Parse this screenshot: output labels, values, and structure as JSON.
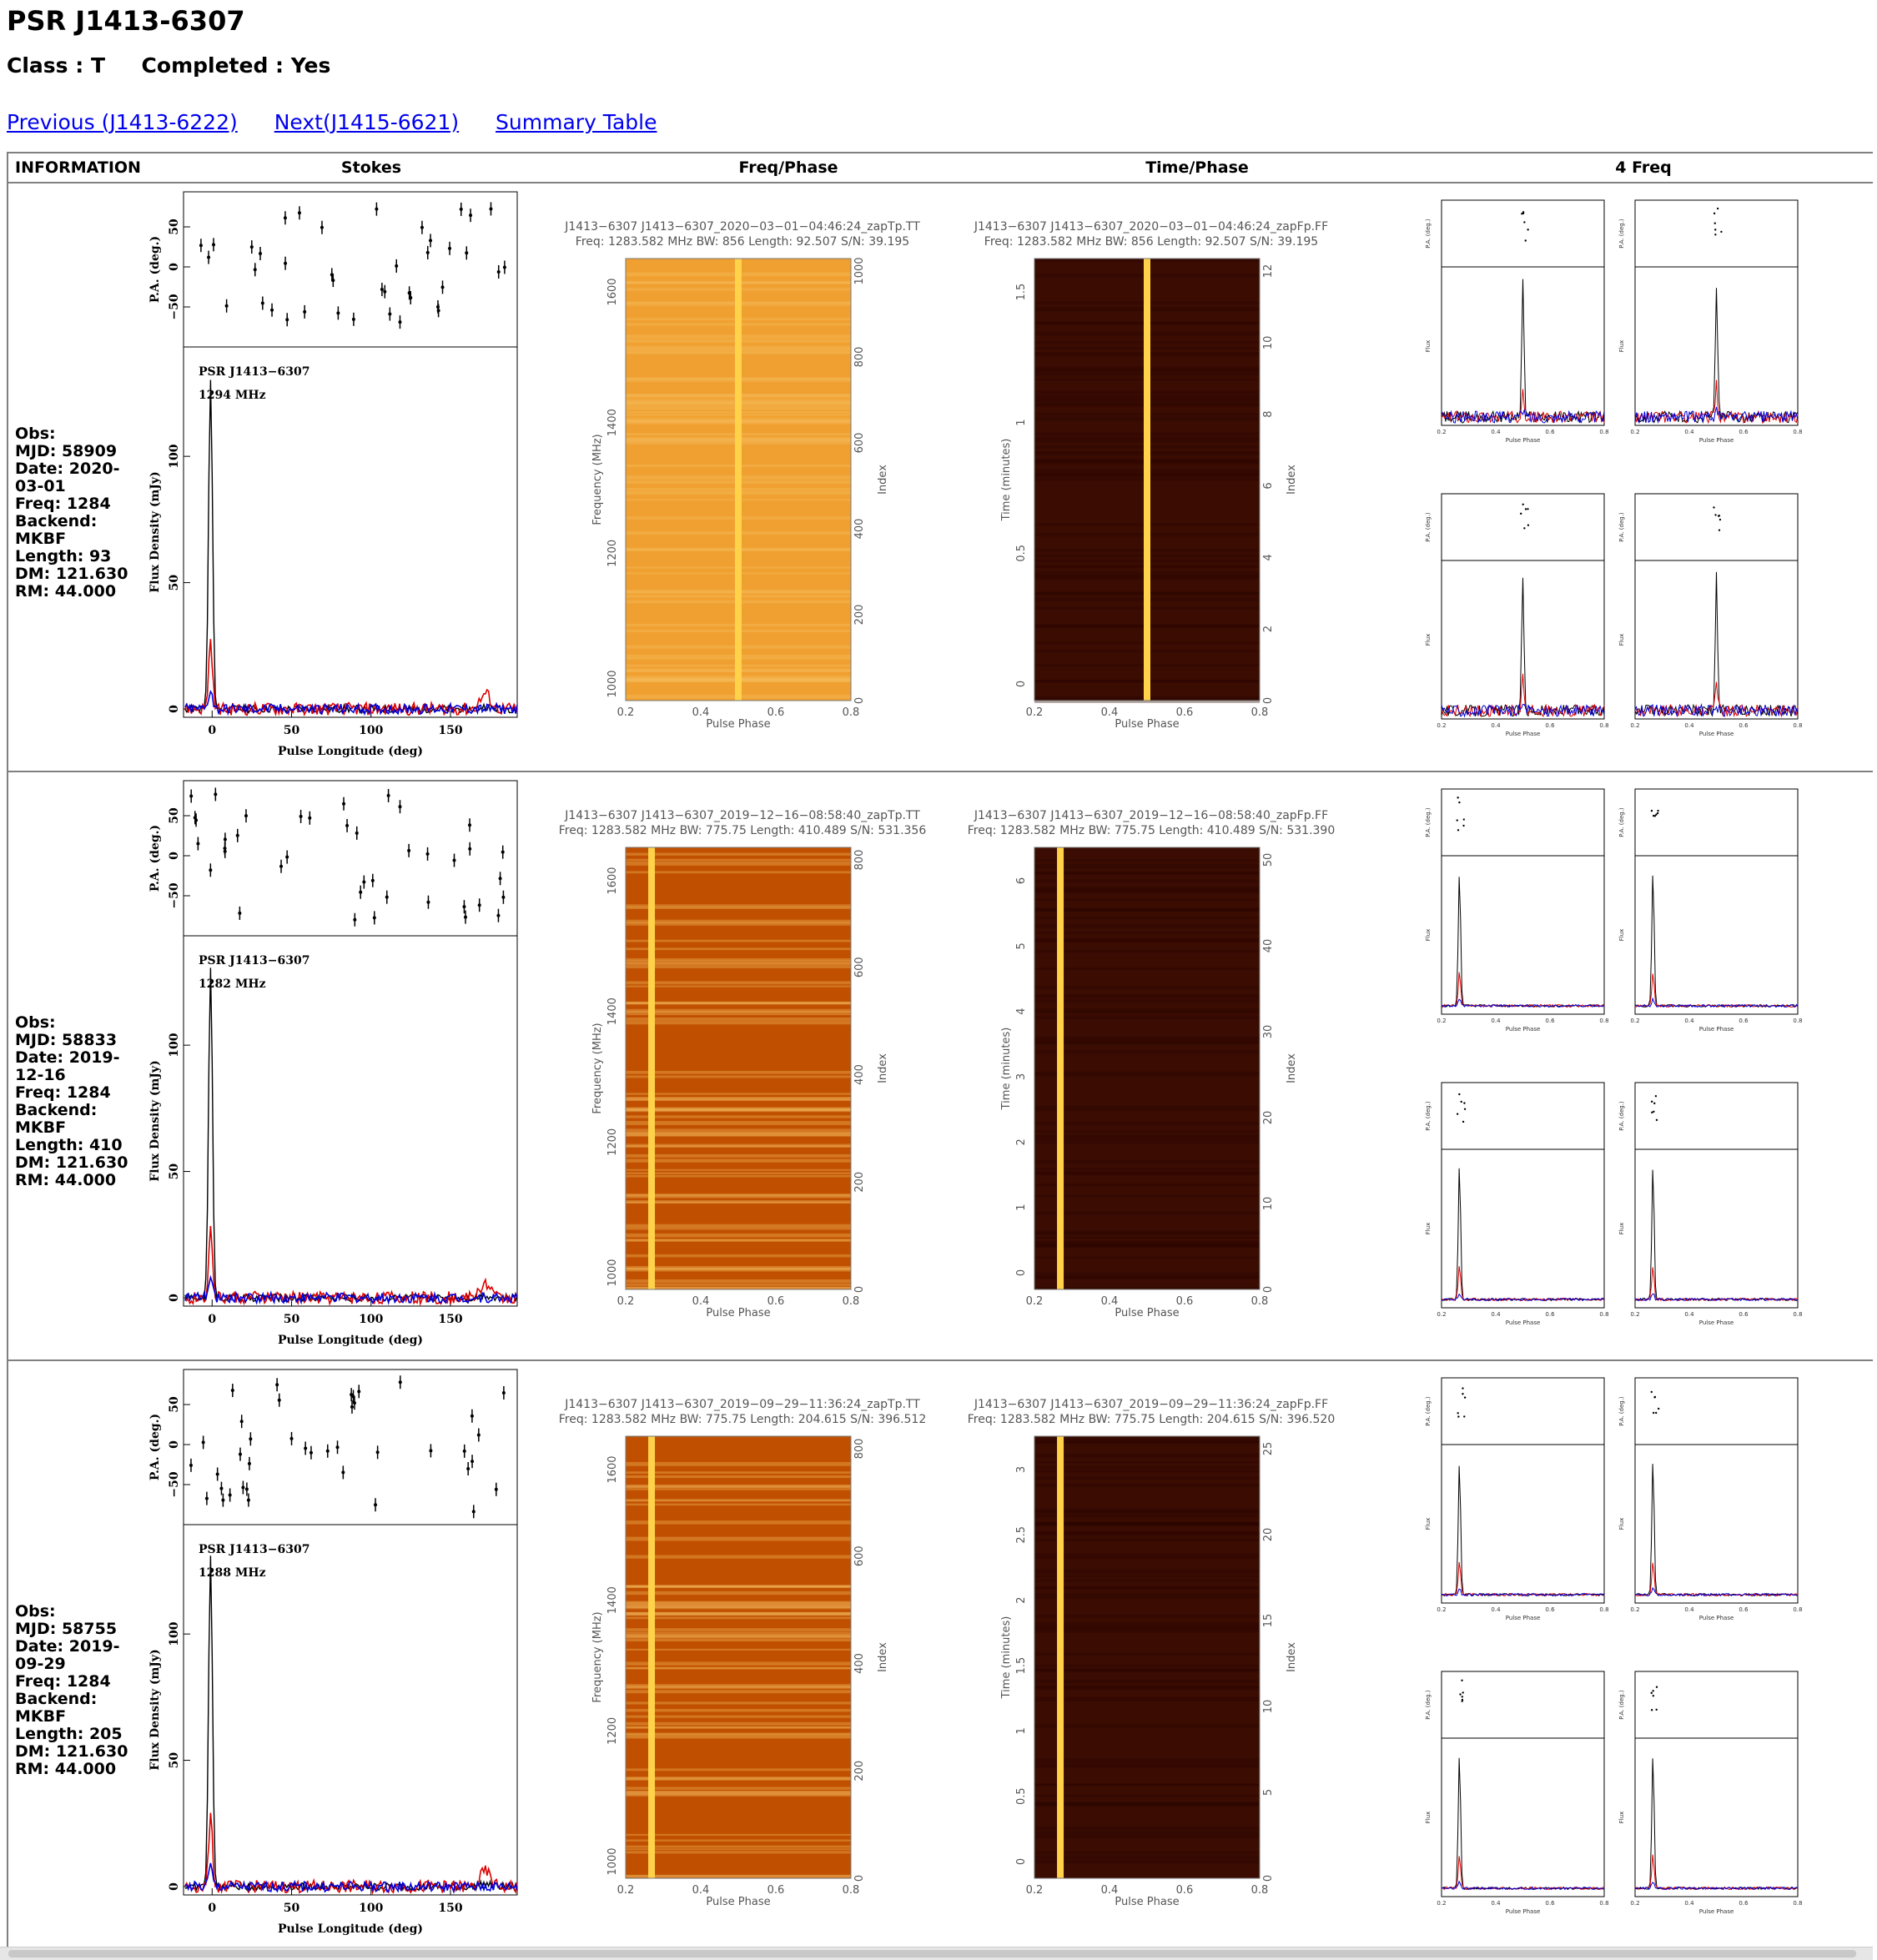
{
  "page": {
    "title": "PSR J1413-6307",
    "class_label": "Class : T",
    "completed_label": "Completed : Yes",
    "nav": {
      "previous": "Previous (J1413-6222)",
      "next": "Next(J1415-6621)",
      "summary": "Summary Table"
    }
  },
  "table": {
    "headers": [
      "INFORMATION",
      "Stokes",
      "Freq/Phase",
      "Time/Phase",
      "4 Freq"
    ],
    "rows": [
      {
        "info": [
          "Obs:",
          "MJD: 58909",
          "Date: 2020-03-01",
          "Freq: 1284",
          "Backend: MKBF",
          "Length: 93",
          "DM: 121.630",
          "RM: 44.000"
        ],
        "stokes": {
          "psr": "PSR J1413−6307",
          "freq": "1294 MHz"
        },
        "fp": {
          "line1": "J1413−6307 J1413−6307_2020−03−01−04:46:24_zapTp.TT",
          "line2": "Freq: 1283.582 MHz BW: 856 Length: 92.507 S/N: 39.195",
          "index_ticks": [
            "0",
            "200",
            "400",
            "600",
            "800",
            "1000"
          ]
        },
        "tp": {
          "line1": "J1413−6307 J1413−6307_2020−03−01−04:46:24_zapFp.FF",
          "line2": "Freq: 1283.582 MHz BW: 856 Length: 92.507 S/N: 39.195",
          "time_ticks": [
            "0",
            "0.5",
            "1",
            "1.5"
          ],
          "index_ticks": [
            "0",
            "2",
            "4",
            "6",
            "8",
            "10",
            "12"
          ]
        }
      },
      {
        "info": [
          "Obs:",
          "MJD: 58833",
          "Date: 2019-12-16",
          "Freq: 1284",
          "Backend: MKBF",
          "Length: 410",
          "DM: 121.630",
          "RM: 44.000"
        ],
        "stokes": {
          "psr": "PSR J1413−6307",
          "freq": "1282 MHz"
        },
        "fp": {
          "line1": "J1413−6307 J1413−6307_2019−12−16−08:58:40_zapTp.TT",
          "line2": "Freq: 1283.582 MHz BW: 775.75 Length: 410.489 S/N: 531.356",
          "index_ticks": [
            "0",
            "200",
            "400",
            "600",
            "800"
          ]
        },
        "tp": {
          "line1": "J1413−6307 J1413−6307_2019−12−16−08:58:40_zapFp.FF",
          "line2": "Freq: 1283.582 MHz BW: 775.75 Length: 410.489 S/N: 531.390",
          "time_ticks": [
            "0",
            "1",
            "2",
            "3",
            "4",
            "5",
            "6"
          ],
          "index_ticks": [
            "0",
            "10",
            "20",
            "30",
            "40",
            "50"
          ]
        }
      },
      {
        "info": [
          "Obs:",
          "MJD: 58755",
          "Date: 2019-09-29",
          "Freq: 1284",
          "Backend: MKBF",
          "Length: 205",
          "DM: 121.630",
          "RM: 44.000"
        ],
        "stokes": {
          "psr": "PSR J1413−6307",
          "freq": "1288 MHz"
        },
        "fp": {
          "line1": "J1413−6307 J1413−6307_2019−09−29−11:36:24_zapTp.TT",
          "line2": "Freq: 1283.582 MHz BW: 775.75 Length: 204.615 S/N: 396.512",
          "index_ticks": [
            "0",
            "200",
            "400",
            "600",
            "800"
          ]
        },
        "tp": {
          "line1": "J1413−6307 J1413−6307_2019−09−29−11:36:24_zapFp.FF",
          "line2": "Freq: 1283.582 MHz BW: 775.75 Length: 204.615 S/N: 396.520",
          "time_ticks": [
            "0",
            "0.5",
            "1",
            "1.5",
            "2",
            "2.5",
            "3"
          ],
          "index_ticks": [
            "0",
            "5",
            "10",
            "15",
            "20",
            "25"
          ]
        }
      }
    ]
  },
  "axes": {
    "pa_label": "P.A. (deg.)",
    "flux_label": "Flux Density (mJy)",
    "longitude_label": "Pulse Longitude (deg)",
    "pulse_phase": "Pulse Phase",
    "frequency_label": "Frequency (MHz)",
    "time_label": "Time (minutes)",
    "index_label": "Index",
    "pa_ticks": [
      "−50",
      "0",
      "50"
    ],
    "flux_ticks": [
      "0",
      "50",
      "100"
    ],
    "lon_ticks": [
      "0",
      "50",
      "100",
      "150"
    ],
    "phase_ticks": [
      "0.2",
      "0.4",
      "0.6",
      "0.8"
    ],
    "freq_ticks": [
      "1000",
      "1200",
      "1400",
      "1600"
    ],
    "small_flux": "Flux",
    "small_pa": "P.A. (deg.)"
  },
  "colors": {
    "link": "#0000ee",
    "stokes_i": "#000000",
    "stokes_l": "#dd0000",
    "stokes_v": "#0000dd",
    "fp_bg": "#e88a1a",
    "tp_bg": "#5a1400"
  }
}
